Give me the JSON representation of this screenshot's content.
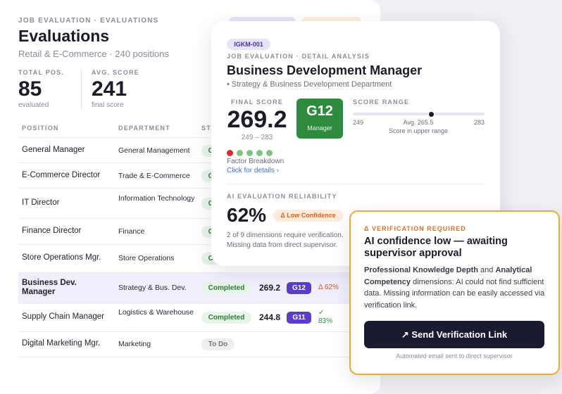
{
  "header": {
    "breadcrumb": "JOB EVALUATION · EVALUATIONS",
    "title": "Evaluations",
    "subtitle": "Retail & E-Commerce · 240 positions"
  },
  "stats": [
    {
      "label": "TOTAL POS.",
      "value": "85",
      "note": "evaluated"
    },
    {
      "label": "AVG. SCORE",
      "value": "241",
      "note": "final score"
    }
  ],
  "table": {
    "headers": [
      "POSITION",
      "DEPARTMENT",
      "STATUS"
    ],
    "rows": [
      {
        "position": "General Manager",
        "department": "General Management",
        "status": "Completed"
      },
      {
        "position": "E-Commerce Director",
        "department": "Trade & E-Commerce",
        "status": "Completed"
      },
      {
        "position": "IT Director",
        "department": "Information Technology",
        "status": "Completed"
      },
      {
        "position": "Finance Director",
        "department": "Finance",
        "status": "Completed"
      },
      {
        "position": "Store Operations Mgr.",
        "department": "Store Operations",
        "status": "Completed"
      },
      {
        "position": "Business Dev. Manager",
        "department": "Strategy & Bus. Dev.",
        "status": "Completed",
        "score": "269.2",
        "grade": "G12",
        "confidence": "Δ 62%"
      },
      {
        "position": "Supply Chain Manager",
        "department": "Logistics & Warehouse",
        "status": "Completed",
        "score": "244.8",
        "grade": "G11",
        "confidence": "✓ 83%"
      },
      {
        "position": "Digital Marketing Mgr.",
        "department": "Marketing",
        "status": "To Do"
      }
    ]
  },
  "detail": {
    "code": "IGKM-001",
    "breadcrumb": "JOB EVALUATION · DETAIL ANALYSIS",
    "title": "Business Development Manager",
    "department": "• Strategy & Business Development Department",
    "final_score_label": "FINAL SCORE",
    "final_score": "269.2",
    "final_range": "249 – 283",
    "grade": "G12",
    "grade_name": "Manager",
    "range_label": "SCORE RANGE",
    "range_min": "249",
    "range_avg": "Avg. 265.5",
    "range_max": "283",
    "range_note": "Score in upper range",
    "factor_label": "Factor Breakdown",
    "factor_link": "Click for details ›",
    "reliability_label": "AI EVALUATION RELIABILITY",
    "reliability": "62%",
    "confidence": "Δ Low Confidence",
    "reliability_note": "2 of 9 dimensions require verification. Missing data from direct supervisor."
  },
  "verification": {
    "tag": "Δ VERIFICATION REQUIRED",
    "title": "AI confidence low — awaiting supervisor approval",
    "body_strong_1": "Professional Knowledge Depth",
    "body_and": " and ",
    "body_strong_2": "Analytical Competency",
    "body_rest": " dimensions: AI could not find sufficient data. Missing information can be easily accessed via verification link.",
    "button": "↗ Send Verification Link",
    "footnote": "Automated email sent to direct supervisor"
  }
}
